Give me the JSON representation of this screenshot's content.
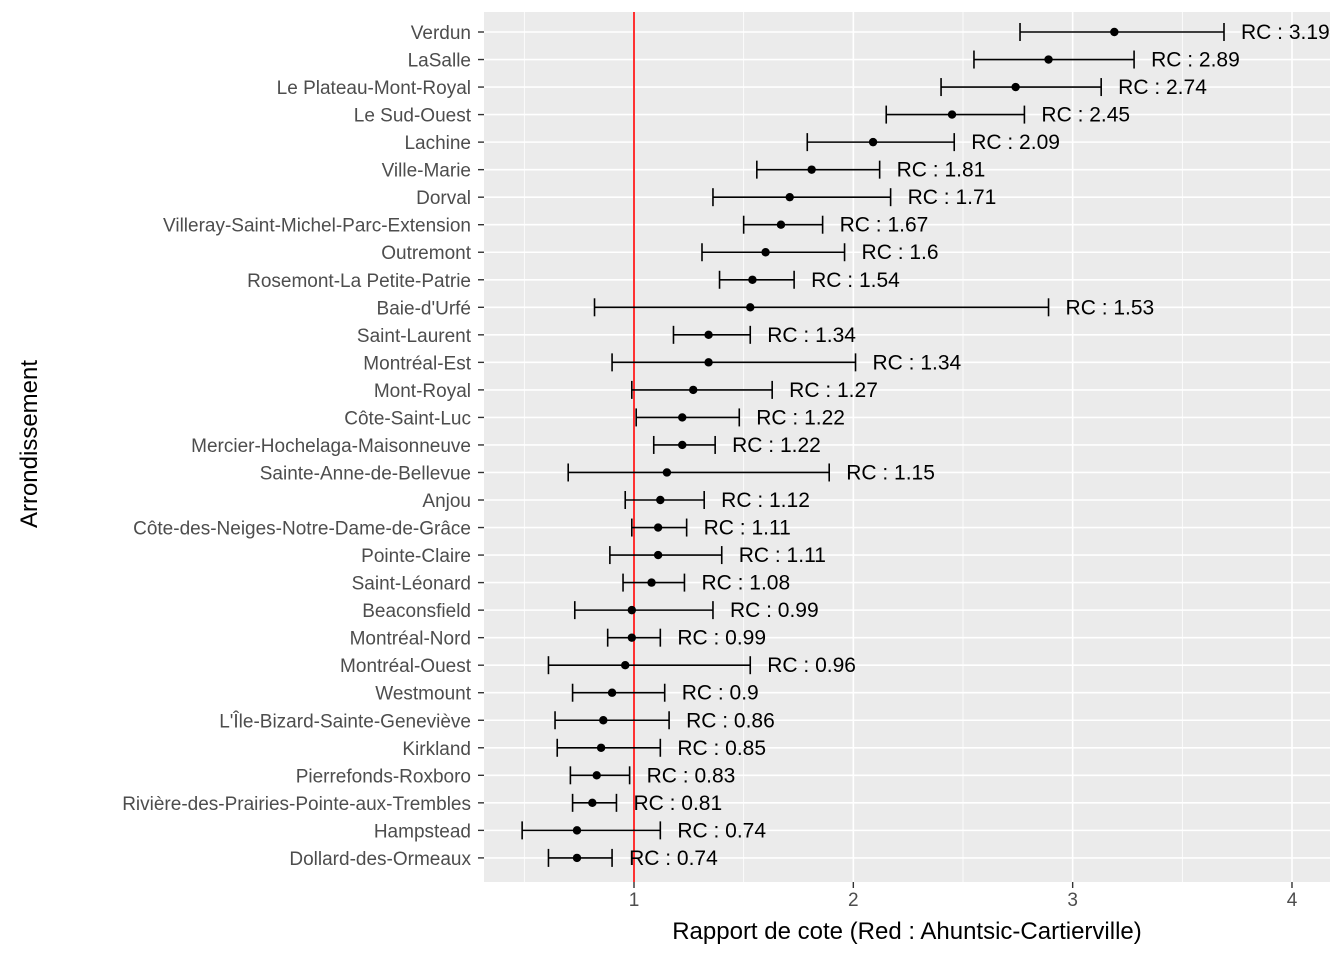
{
  "chart_data": {
    "type": "scatter",
    "subtype": "forest-plot",
    "xlabel": "Rapport de cote (Red : Ahuntsic-Cartierville)",
    "ylabel": "Arrondissement",
    "xlim": [
      0.38,
      4.16
    ],
    "xticks": [
      1,
      2,
      3,
      4
    ],
    "reference_line": {
      "x": 1,
      "color": "#ff0000"
    },
    "label_prefix": "RC : ",
    "panel_background": "#ebebeb",
    "grid": true,
    "series": [
      {
        "name": "Verdun",
        "rc": 3.19,
        "rc_label": "3.19",
        "low": 2.76,
        "high": 3.69
      },
      {
        "name": "LaSalle",
        "rc": 2.89,
        "rc_label": "2.89",
        "low": 2.55,
        "high": 3.28
      },
      {
        "name": "Le Plateau-Mont-Royal",
        "rc": 2.74,
        "rc_label": "2.74",
        "low": 2.4,
        "high": 3.13
      },
      {
        "name": "Le Sud-Ouest",
        "rc": 2.45,
        "rc_label": "2.45",
        "low": 2.15,
        "high": 2.78
      },
      {
        "name": "Lachine",
        "rc": 2.09,
        "rc_label": "2.09",
        "low": 1.79,
        "high": 2.46
      },
      {
        "name": "Ville-Marie",
        "rc": 1.81,
        "rc_label": "1.81",
        "low": 1.56,
        "high": 2.12
      },
      {
        "name": "Dorval",
        "rc": 1.71,
        "rc_label": "1.71",
        "low": 1.36,
        "high": 2.17
      },
      {
        "name": "Villeray-Saint-Michel-Parc-Extension",
        "rc": 1.67,
        "rc_label": "1.67",
        "low": 1.5,
        "high": 1.86
      },
      {
        "name": "Outremont",
        "rc": 1.6,
        "rc_label": "1.6",
        "low": 1.31,
        "high": 1.96
      },
      {
        "name": "Rosemont-La Petite-Patrie",
        "rc": 1.54,
        "rc_label": "1.54",
        "low": 1.39,
        "high": 1.73
      },
      {
        "name": "Baie-d'Urfé",
        "rc": 1.53,
        "rc_label": "1.53",
        "low": 0.82,
        "high": 2.89
      },
      {
        "name": "Saint-Laurent",
        "rc": 1.34,
        "rc_label": "1.34",
        "low": 1.18,
        "high": 1.53
      },
      {
        "name": "Montréal-Est",
        "rc": 1.34,
        "rc_label": "1.34",
        "low": 0.9,
        "high": 2.01
      },
      {
        "name": "Mont-Royal",
        "rc": 1.27,
        "rc_label": "1.27",
        "low": 0.99,
        "high": 1.63
      },
      {
        "name": "Côte-Saint-Luc",
        "rc": 1.22,
        "rc_label": "1.22",
        "low": 1.01,
        "high": 1.48
      },
      {
        "name": "Mercier-Hochelaga-Maisonneuve",
        "rc": 1.22,
        "rc_label": "1.22",
        "low": 1.09,
        "high": 1.37
      },
      {
        "name": "Sainte-Anne-de-Bellevue",
        "rc": 1.15,
        "rc_label": "1.15",
        "low": 0.7,
        "high": 1.89
      },
      {
        "name": "Anjou",
        "rc": 1.12,
        "rc_label": "1.12",
        "low": 0.96,
        "high": 1.32
      },
      {
        "name": "Côte-des-Neiges-Notre-Dame-de-Grâce",
        "rc": 1.11,
        "rc_label": "1.11",
        "low": 0.99,
        "high": 1.24
      },
      {
        "name": "Pointe-Claire",
        "rc": 1.11,
        "rc_label": "1.11",
        "low": 0.89,
        "high": 1.4
      },
      {
        "name": "Saint-Léonard",
        "rc": 1.08,
        "rc_label": "1.08",
        "low": 0.95,
        "high": 1.23
      },
      {
        "name": "Beaconsfield",
        "rc": 0.99,
        "rc_label": "0.99",
        "low": 0.73,
        "high": 1.36
      },
      {
        "name": "Montréal-Nord",
        "rc": 0.99,
        "rc_label": "0.99",
        "low": 0.88,
        "high": 1.12
      },
      {
        "name": "Montréal-Ouest",
        "rc": 0.96,
        "rc_label": "0.96",
        "low": 0.61,
        "high": 1.53
      },
      {
        "name": "Westmount",
        "rc": 0.9,
        "rc_label": "0.9",
        "low": 0.72,
        "high": 1.14
      },
      {
        "name": "L'Île-Bizard-Sainte-Geneviève",
        "rc": 0.86,
        "rc_label": "0.86",
        "low": 0.64,
        "high": 1.16
      },
      {
        "name": "Kirkland",
        "rc": 0.85,
        "rc_label": "0.85",
        "low": 0.65,
        "high": 1.12
      },
      {
        "name": "Pierrefonds-Roxboro",
        "rc": 0.83,
        "rc_label": "0.83",
        "low": 0.71,
        "high": 0.98
      },
      {
        "name": "Rivière-des-Prairies-Pointe-aux-Trembles",
        "rc": 0.81,
        "rc_label": "0.81",
        "low": 0.72,
        "high": 0.92
      },
      {
        "name": "Hampstead",
        "rc": 0.74,
        "rc_label": "0.74",
        "low": 0.49,
        "high": 1.12
      },
      {
        "name": "Dollard-des-Ormeaux",
        "rc": 0.74,
        "rc_label": "0.74",
        "low": 0.61,
        "high": 0.9
      }
    ]
  }
}
